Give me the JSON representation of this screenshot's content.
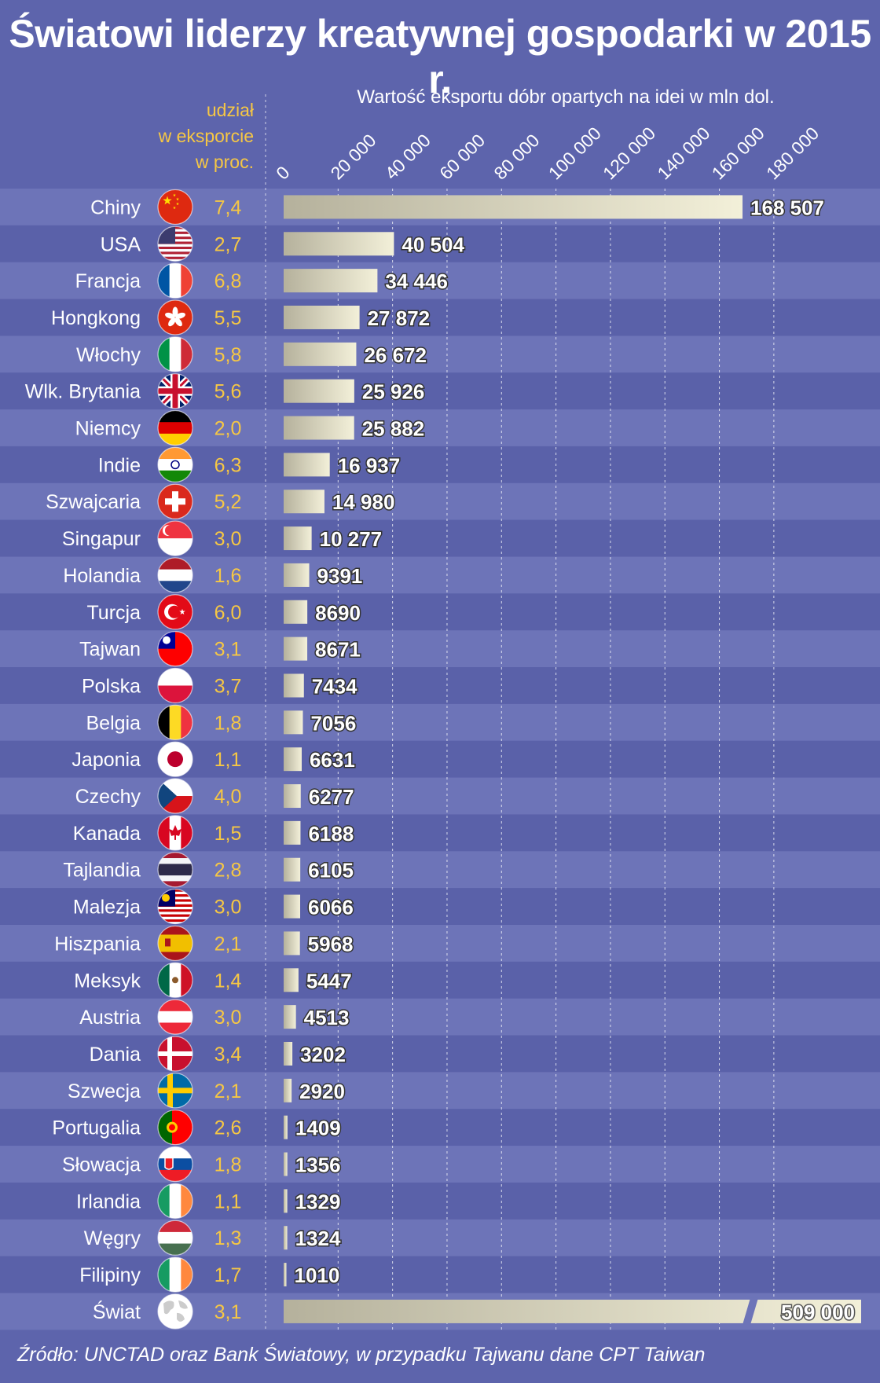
{
  "title": "Światowi liderzy kreatywnej gospodarki w 2015 r.",
  "source": "Źródło: UNCTAD oraz Bank Światowy, w przypadku Tajwanu dane CPT Taiwan",
  "colors": {
    "background": "#5d64ac",
    "band_light": "#6d74b8",
    "band_dark": "#5a61a9",
    "bar_start": "#b5b19c",
    "bar_end": "#f3f0d9",
    "share_text": "#f6c744"
  },
  "chart_data": {
    "type": "bar",
    "orientation": "horizontal",
    "share_header": "udział\nw eksporcie\nw proc.",
    "value_header": "Wartość eksportu dóbr opartych na idei w mln dol.",
    "xlim": [
      0,
      180000
    ],
    "ticks": [
      0,
      20000,
      40000,
      60000,
      80000,
      100000,
      120000,
      140000,
      160000,
      180000
    ],
    "tick_labels": [
      "0",
      "20 000",
      "40 000",
      "60 000",
      "80 000",
      "100 000",
      "120 000",
      "140 000",
      "160 000",
      "180 000"
    ],
    "grid": true,
    "rows": [
      {
        "country": "Chiny",
        "flag": "china-flag-icon",
        "share": "7,4",
        "value": 168507,
        "value_label": "168 507"
      },
      {
        "country": "USA",
        "flag": "usa-flag-icon",
        "share": "2,7",
        "value": 40504,
        "value_label": "40 504"
      },
      {
        "country": "Francja",
        "flag": "france-flag-icon",
        "share": "6,8",
        "value": 34446,
        "value_label": "34 446"
      },
      {
        "country": "Hongkong",
        "flag": "hongkong-flag-icon",
        "share": "5,5",
        "value": 27872,
        "value_label": "27 872"
      },
      {
        "country": "Włochy",
        "flag": "italy-flag-icon",
        "share": "5,8",
        "value": 26672,
        "value_label": "26 672"
      },
      {
        "country": "Wlk. Brytania",
        "flag": "uk-flag-icon",
        "share": "5,6",
        "value": 25926,
        "value_label": "25 926"
      },
      {
        "country": "Niemcy",
        "flag": "germany-flag-icon",
        "share": "2,0",
        "value": 25882,
        "value_label": "25 882"
      },
      {
        "country": "Indie",
        "flag": "india-flag-icon",
        "share": "6,3",
        "value": 16937,
        "value_label": "16 937"
      },
      {
        "country": "Szwajcaria",
        "flag": "switzerland-flag-icon",
        "share": "5,2",
        "value": 14980,
        "value_label": "14 980"
      },
      {
        "country": "Singapur",
        "flag": "singapore-flag-icon",
        "share": "3,0",
        "value": 10277,
        "value_label": "10 277"
      },
      {
        "country": "Holandia",
        "flag": "netherlands-flag-icon",
        "share": "1,6",
        "value": 9391,
        "value_label": "9391"
      },
      {
        "country": "Turcja",
        "flag": "turkey-flag-icon",
        "share": "6,0",
        "value": 8690,
        "value_label": "8690"
      },
      {
        "country": "Tajwan",
        "flag": "taiwan-flag-icon",
        "share": "3,1",
        "value": 8671,
        "value_label": "8671"
      },
      {
        "country": "Polska",
        "flag": "poland-flag-icon",
        "share": "3,7",
        "value": 7434,
        "value_label": "7434"
      },
      {
        "country": "Belgia",
        "flag": "belgium-flag-icon",
        "share": "1,8",
        "value": 7056,
        "value_label": "7056"
      },
      {
        "country": "Japonia",
        "flag": "japan-flag-icon",
        "share": "1,1",
        "value": 6631,
        "value_label": "6631"
      },
      {
        "country": "Czechy",
        "flag": "czechia-flag-icon",
        "share": "4,0",
        "value": 6277,
        "value_label": "6277"
      },
      {
        "country": "Kanada",
        "flag": "canada-flag-icon",
        "share": "1,5",
        "value": 6188,
        "value_label": "6188"
      },
      {
        "country": "Tajlandia",
        "flag": "thailand-flag-icon",
        "share": "2,8",
        "value": 6105,
        "value_label": "6105"
      },
      {
        "country": "Malezja",
        "flag": "malaysia-flag-icon",
        "share": "3,0",
        "value": 6066,
        "value_label": "6066"
      },
      {
        "country": "Hiszpania",
        "flag": "spain-flag-icon",
        "share": "2,1",
        "value": 5968,
        "value_label": "5968"
      },
      {
        "country": "Meksyk",
        "flag": "mexico-flag-icon",
        "share": "1,4",
        "value": 5447,
        "value_label": "5447"
      },
      {
        "country": "Austria",
        "flag": "austria-flag-icon",
        "share": "3,0",
        "value": 4513,
        "value_label": "4513"
      },
      {
        "country": "Dania",
        "flag": "denmark-flag-icon",
        "share": "3,4",
        "value": 3202,
        "value_label": "3202"
      },
      {
        "country": "Szwecja",
        "flag": "sweden-flag-icon",
        "share": "2,1",
        "value": 2920,
        "value_label": "2920"
      },
      {
        "country": "Portugalia",
        "flag": "portugal-flag-icon",
        "share": "2,6",
        "value": 1409,
        "value_label": "1409"
      },
      {
        "country": "Słowacja",
        "flag": "slovakia-flag-icon",
        "share": "1,8",
        "value": 1356,
        "value_label": "1356"
      },
      {
        "country": "Irlandia",
        "flag": "ireland-flag-icon",
        "share": "1,1",
        "value": 1329,
        "value_label": "1329"
      },
      {
        "country": "Węgry",
        "flag": "hungary-flag-icon",
        "share": "1,3",
        "value": 1324,
        "value_label": "1324"
      },
      {
        "country": "Filipiny",
        "flag": "philippines-flag-icon",
        "share": "1,7",
        "value": 1010,
        "value_label": "1010"
      },
      {
        "country": "Świat",
        "flag": "globe-icon",
        "share": "3,1",
        "value": 509000,
        "value_label": "509 000",
        "axis_break": true
      }
    ]
  }
}
